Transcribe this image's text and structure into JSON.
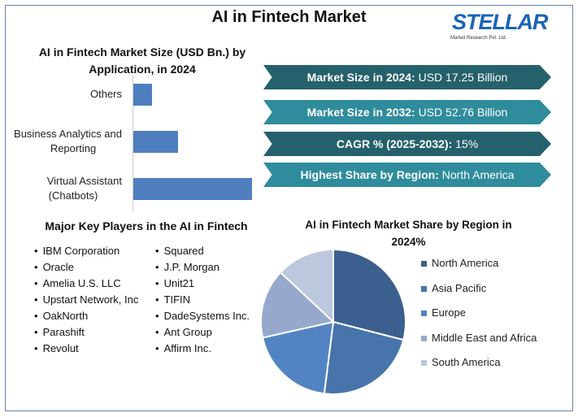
{
  "title": "AI in Fintech Market",
  "logo": {
    "name": "STELLAR",
    "subtitle": "Market Research Pvt. Ltd."
  },
  "stats": [
    {
      "label": "Market Size in 2024:",
      "value": " USD 17.25 Billion"
    },
    {
      "label": "Market Size in 2032:",
      "value": " USD 52.76 Billion"
    },
    {
      "label": "CAGR % (2025-2032):",
      "value": " 15%"
    },
    {
      "label": "Highest Share by Region:",
      "value": " North America"
    }
  ],
  "key_players": {
    "title": "Major Key Players in the AI in Fintech",
    "col1": [
      "IBM Corporation",
      "Oracle",
      "Amelia U.S. LLC",
      "Upstart Network, Inc",
      "OakNorth",
      "Parashift",
      "Revolut"
    ],
    "col2": [
      "Squared",
      "J.P. Morgan",
      "Unit21",
      "TIFIN",
      "DadeSystems Inc.",
      "Ant Group",
      "Affirm Inc."
    ]
  },
  "chart_data": [
    {
      "type": "bar",
      "orientation": "horizontal",
      "title_line1": "AI in Fintech Market Size (USD Bn.) by",
      "title_line2": "Application, in 2024",
      "categories_line1": [
        "Others",
        "Business Analytics and",
        "Virtual Assistant"
      ],
      "categories_line2": [
        "",
        "Reporting",
        "(Chatbots)"
      ],
      "values": [
        1.6,
        3.8,
        10.0
      ],
      "color": "#4f7fbf"
    },
    {
      "type": "pie",
      "title_line1": "AI in Fintech Market Share by Region in",
      "title_line2": "2024%",
      "labels": [
        "North America",
        "Asia Pacific",
        "Europe",
        "Middle East and Africa",
        "South America"
      ],
      "values": [
        29,
        23,
        19.5,
        15.5,
        13
      ],
      "colors": [
        "#3b5f8f",
        "#4674ab",
        "#5284c4",
        "#96a9cd",
        "#bcc8de"
      ],
      "legend": "right"
    }
  ]
}
